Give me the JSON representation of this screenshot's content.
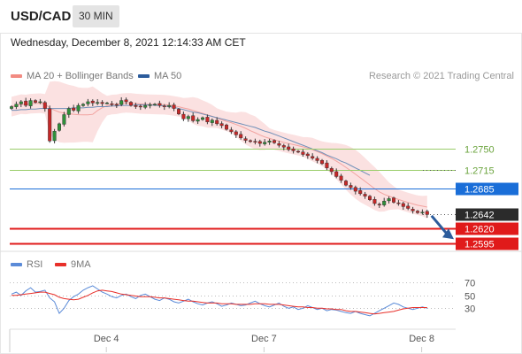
{
  "header": {
    "symbol": "USD/CAD",
    "timeframe": "30 MIN",
    "datetime": "Wednesday, December 8, 2021 12:14:33 AM CET"
  },
  "legend": {
    "ma20": {
      "label": "MA 20 + Bollinger Bands",
      "color": "#f28b82"
    },
    "ma50": {
      "label": "MA 50",
      "color": "#2c5c9c"
    },
    "copyright": "Research © 2021 Trading Central"
  },
  "rsi_legend": {
    "rsi": {
      "label": "RSI",
      "color": "#5b8bd8"
    },
    "ma9": {
      "label": "9MA",
      "color": "#e8302a"
    }
  },
  "chart_data": [
    {
      "type": "candlestick",
      "ylim": [
        1.2582,
        1.2862
      ],
      "levels": [
        {
          "value": 1.275,
          "label": "1.2750",
          "kind": "resistance",
          "color": "#9acd6a"
        },
        {
          "value": 1.2715,
          "label": "1.2715",
          "kind": "resistance",
          "color": "#9acd6a"
        },
        {
          "value": 1.2685,
          "label": "1.2685",
          "kind": "pivot",
          "color": "#1a6ed8"
        },
        {
          "value": 1.2642,
          "label": "1.2642",
          "kind": "last-price",
          "color": "#333333"
        },
        {
          "value": 1.262,
          "label": "1.2620",
          "kind": "target",
          "color": "#e01a1a"
        },
        {
          "value": 1.2595,
          "label": "1.2595",
          "kind": "target",
          "color": "#e01a1a"
        }
      ],
      "x_tick_labels": [
        {
          "index": 18,
          "label": "Dec 4"
        },
        {
          "index": 51,
          "label": "Dec 7"
        },
        {
          "index": 84,
          "label": "Dec 8"
        }
      ],
      "close": [
        1.2818,
        1.2822,
        1.2826,
        1.282,
        1.2828,
        1.2825,
        1.2826,
        1.2815,
        1.2762,
        1.2778,
        1.279,
        1.2805,
        1.2815,
        1.2812,
        1.282,
        1.2822,
        1.2826,
        1.2824,
        1.2825,
        1.2823,
        1.2824,
        1.2822,
        1.2821,
        1.2828,
        1.2826,
        1.282,
        1.2818,
        1.2818,
        1.282,
        1.2821,
        1.2822,
        1.282,
        1.2818,
        1.282,
        1.2815,
        1.2806,
        1.2798,
        1.2802,
        1.2795,
        1.2797,
        1.28,
        1.2793,
        1.2796,
        1.279,
        1.2787,
        1.2781,
        1.2777,
        1.2772,
        1.2767,
        1.2763,
        1.2761,
        1.276,
        1.2758,
        1.276,
        1.2762,
        1.2759,
        1.2755,
        1.2752,
        1.2748,
        1.2746,
        1.2744,
        1.274,
        1.2738,
        1.2734,
        1.273,
        1.2725,
        1.2718,
        1.2712,
        1.2704,
        1.2698,
        1.269,
        1.2686,
        1.268,
        1.2676,
        1.2672,
        1.2666,
        1.266,
        1.2658,
        1.2664,
        1.2668,
        1.2662,
        1.266,
        1.2655,
        1.2652,
        1.2648,
        1.2645,
        1.2646,
        1.2642
      ],
      "ma50": [
        1.2812,
        1.2812,
        1.2813,
        1.2813,
        1.2814,
        1.2814,
        1.2815,
        1.2815,
        1.2815,
        1.2815,
        1.2815,
        1.2815,
        1.2815,
        1.2816,
        1.2816,
        1.2816,
        1.2817,
        1.2817,
        1.2818,
        1.2818,
        1.2818,
        1.2819,
        1.2819,
        1.282,
        1.282,
        1.282,
        1.2821,
        1.2821,
        1.2821,
        1.2821,
        1.282,
        1.282,
        1.2819,
        1.2818,
        1.2817,
        1.2815,
        1.2813,
        1.2811,
        1.2809,
        1.2808,
        1.2806,
        1.2804,
        1.2802,
        1.28,
        1.2798,
        1.2796,
        1.2794,
        1.2792,
        1.279,
        1.2788,
        1.2786,
        1.2784,
        1.2781,
        1.2778,
        1.2776,
        1.2773,
        1.277,
        1.2767,
        1.2764,
        1.2761,
        1.2758,
        1.2755,
        1.2752,
        1.2749,
        1.2746,
        1.2743,
        1.2739,
        1.2736,
        1.2733,
        1.2729,
        1.2726,
        1.2722,
        1.2718,
        1.2714,
        1.271,
        1.2706
      ]
    },
    {
      "type": "line",
      "name": "RSI",
      "ylim": [
        0,
        100
      ],
      "ticks": [
        70,
        50,
        30
      ],
      "rsi": [
        52,
        55,
        50,
        57,
        62,
        55,
        56,
        58,
        46,
        40,
        22,
        30,
        42,
        48,
        52,
        58,
        62,
        65,
        60,
        55,
        52,
        48,
        46,
        50,
        52,
        48,
        45,
        50,
        52,
        48,
        44,
        42,
        46,
        44,
        40,
        38,
        41,
        44,
        40,
        37,
        35,
        38,
        40,
        37,
        33,
        35,
        38,
        36,
        34,
        35,
        38,
        41,
        37,
        34,
        32,
        35,
        38,
        33,
        30,
        32,
        28,
        30,
        34,
        31,
        28,
        30,
        26,
        28,
        27,
        25,
        23,
        22,
        25,
        22,
        20,
        18,
        22,
        26,
        30,
        34,
        38,
        36,
        32,
        30,
        28,
        30,
        32,
        30
      ],
      "ma9": [
        50,
        50,
        51,
        52,
        53,
        54,
        55,
        55,
        53,
        51,
        47,
        45,
        44,
        43,
        44,
        47,
        50,
        54,
        57,
        58,
        57,
        56,
        54,
        52,
        51,
        50,
        49,
        48,
        48,
        48,
        47,
        46,
        46,
        45,
        44,
        43,
        42,
        41,
        41,
        40,
        39,
        38,
        38,
        38,
        37,
        37,
        37,
        36,
        36,
        36,
        36,
        37,
        37,
        37,
        36,
        36,
        36,
        35,
        34,
        33,
        32,
        32,
        31,
        31,
        30,
        30,
        29,
        29,
        28,
        28,
        26,
        25,
        25,
        24,
        23,
        22,
        21,
        22,
        23,
        24,
        25,
        27,
        29,
        30,
        31,
        31,
        31,
        31
      ]
    }
  ]
}
